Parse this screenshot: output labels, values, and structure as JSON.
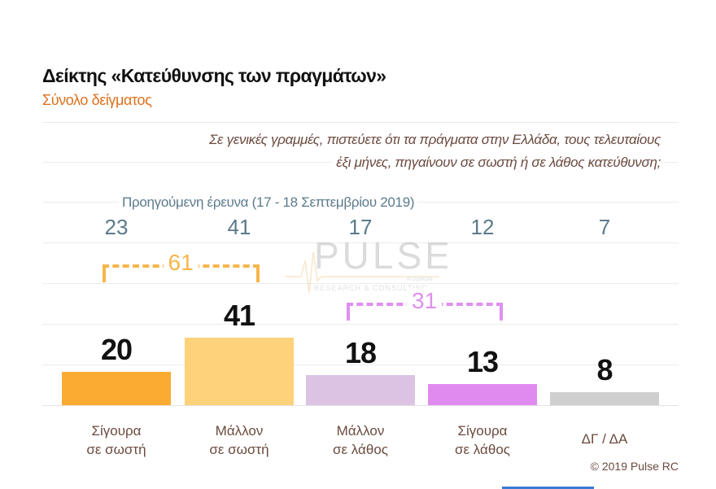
{
  "header": {
    "title": "Δείκτης «Κατεύθυνσης των πραγμάτων»",
    "subtitle": "Σύνολο δείγματος"
  },
  "question": {
    "line1": "Σε γενικές γραμμές, πιστεύετε ότι τα πράγματα στην Ελλάδα, τους τελευταίους",
    "line2": "έξι μήνες, πηγαίνουν σε σωστή ή σε λάθος κατεύθυνση;"
  },
  "previous": {
    "label": "Προηγούμενη έρευνα  (17 - 18  Σεπτεμβρίου  2019)",
    "values": [
      "23",
      "41",
      "17",
      "12",
      "7"
    ]
  },
  "watermark": {
    "brand": "PULSE",
    "tagline": "RESEARCH & CONSULTING",
    "partner": "KOSMON"
  },
  "chart_data": {
    "type": "bar",
    "categories": [
      [
        "Σίγουρα",
        "σε σωστή"
      ],
      [
        "Μάλλον",
        "σε σωστή"
      ],
      [
        "Μάλλον",
        "σε λάθος"
      ],
      [
        "Σίγουρα",
        "σε λάθος"
      ],
      [
        "ΔΓ / ΔΑ",
        ""
      ]
    ],
    "values": [
      20,
      41,
      18,
      13,
      8
    ],
    "value_labels": [
      "20",
      "41",
      "18",
      "13",
      "8"
    ],
    "previous_values": [
      23,
      41,
      17,
      12,
      7
    ],
    "colors": [
      "#fbab31",
      "#fdd27a",
      "#dcc3e3",
      "#e08af0",
      "#cfcfcf"
    ],
    "groups": [
      {
        "label": "61",
        "members": [
          0,
          1
        ],
        "color": "#f8b54a"
      },
      {
        "label": "31",
        "members": [
          2,
          3
        ],
        "color": "#df8ff0"
      }
    ],
    "ylim": [
      0,
      45
    ],
    "grid": true
  },
  "footer": {
    "copyright": "© 2019 Pulse RC"
  }
}
